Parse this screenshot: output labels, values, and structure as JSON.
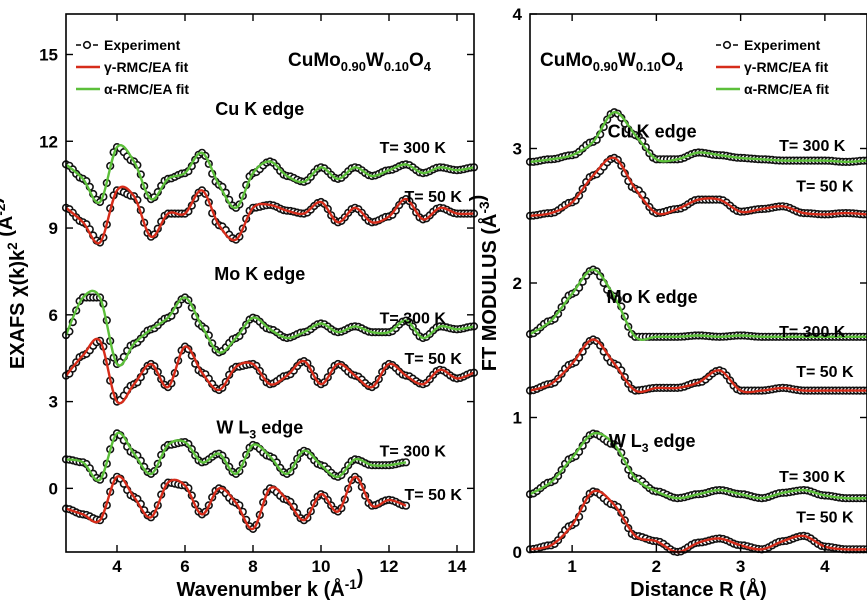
{
  "colors": {
    "experiment": "#111111",
    "gamma": "#d62c1a",
    "alpha": "#5cbf3a",
    "axis": "#000000"
  },
  "chart_data": [
    {
      "type": "line",
      "panel": "left",
      "compound": {
        "base": "CuMo",
        "sub1": "0.90",
        "mid": "W",
        "sub2": "0.10",
        "tail": "O",
        "sub3": "4"
      },
      "xlabel": {
        "main": "Wavenumber k (Å",
        "sup": "-1",
        "end": ")"
      },
      "ylabel": {
        "main": "EXAFS χ(k)k",
        "sup1": "2",
        "mid": " (Å",
        "sup2": "-2",
        "end": ")"
      },
      "xlim": [
        2.5,
        14.5
      ],
      "ylim": [
        -2.2,
        16.4
      ],
      "xticks": [
        "4",
        "6",
        "8",
        "10",
        "12",
        "14"
      ],
      "yticks": [
        "0",
        "3",
        "6",
        "9",
        "12",
        "15"
      ],
      "legend": {
        "position": "top-left",
        "entries": [
          "Experiment",
          "γ-RMC/EA fit",
          "α-RMC/EA fit"
        ]
      },
      "edge_labels": [
        {
          "text": "Cu K edge",
          "x": 8.2,
          "y": 12.9
        },
        {
          "text": "Mo K edge",
          "x": 8.2,
          "y": 7.2
        },
        {
          "text": "W L",
          "sub": "3",
          "end": " edge",
          "x": 8.2,
          "y": 1.9
        }
      ],
      "temp_labels": [
        {
          "text": "T= 300 K",
          "x": 12.7,
          "y": 11.6
        },
        {
          "text": "T= 50 K",
          "x": 13.3,
          "y": 9.9
        },
        {
          "text": "T= 300 K",
          "x": 12.7,
          "y": 5.7
        },
        {
          "text": "T= 50 K",
          "x": 13.3,
          "y": 4.3
        },
        {
          "text": "T= 300 K",
          "x": 12.7,
          "y": 1.1
        },
        {
          "text": "T= 50 K",
          "x": 13.3,
          "y": -0.4
        }
      ],
      "series": [
        {
          "edge": "Cu K",
          "T": "300 K",
          "fit": "alpha",
          "x": [
            2.5,
            3.0,
            3.5,
            4.0,
            4.5,
            5.0,
            5.5,
            6.0,
            6.5,
            7.0,
            7.5,
            8.0,
            8.5,
            9.0,
            9.5,
            10.0,
            10.5,
            11.0,
            11.5,
            12.0,
            12.5,
            13.0,
            13.5,
            14.0,
            14.5
          ],
          "y": [
            11.2,
            10.7,
            9.9,
            11.8,
            11.3,
            10.0,
            10.7,
            10.9,
            11.6,
            10.5,
            9.7,
            10.9,
            11.3,
            10.8,
            10.6,
            11.1,
            10.7,
            11.1,
            10.8,
            11.0,
            11.2,
            10.9,
            11.1,
            11.0,
            11.1
          ]
        },
        {
          "edge": "Cu K",
          "T": "50 K",
          "fit": "gamma",
          "x": [
            2.5,
            3.0,
            3.5,
            4.0,
            4.5,
            5.0,
            5.5,
            6.0,
            6.5,
            7.0,
            7.5,
            8.0,
            8.5,
            9.0,
            9.5,
            10.0,
            10.5,
            11.0,
            11.5,
            12.0,
            12.5,
            13.0,
            13.5,
            14.0,
            14.5
          ],
          "y": [
            9.7,
            9.2,
            8.5,
            10.3,
            10.1,
            8.7,
            9.5,
            9.5,
            10.3,
            9.1,
            8.6,
            9.7,
            9.8,
            9.6,
            9.5,
            9.9,
            9.2,
            9.7,
            9.2,
            9.4,
            10.0,
            9.3,
            9.7,
            9.5,
            9.5
          ]
        },
        {
          "edge": "Mo K",
          "T": "300 K",
          "fit": "alpha",
          "x": [
            2.5,
            3.0,
            3.5,
            4.0,
            4.5,
            5.0,
            5.5,
            6.0,
            6.5,
            7.0,
            7.5,
            8.0,
            8.5,
            9.0,
            9.5,
            10.0,
            10.5,
            11.0,
            11.5,
            12.0,
            12.5,
            13.0,
            13.5,
            14.0,
            14.5
          ],
          "y": [
            5.3,
            6.6,
            6.6,
            4.3,
            5.0,
            5.5,
            5.9,
            6.6,
            5.6,
            4.7,
            5.2,
            5.9,
            5.5,
            5.2,
            5.4,
            5.7,
            5.4,
            5.6,
            5.4,
            5.4,
            5.8,
            5.2,
            5.6,
            5.5,
            5.6
          ]
        },
        {
          "edge": "Mo K",
          "T": "50 K",
          "fit": "gamma",
          "x": [
            2.5,
            3.0,
            3.5,
            4.0,
            4.5,
            5.0,
            5.5,
            6.0,
            6.5,
            7.0,
            7.5,
            8.0,
            8.5,
            9.0,
            9.5,
            10.0,
            10.5,
            11.0,
            11.5,
            12.0,
            12.5,
            13.0,
            13.5,
            14.0,
            14.5
          ],
          "y": [
            3.9,
            4.6,
            5.1,
            3.0,
            3.6,
            4.3,
            3.5,
            4.9,
            4.0,
            3.4,
            4.2,
            4.3,
            3.6,
            3.9,
            4.4,
            3.6,
            4.3,
            3.9,
            3.5,
            4.3,
            3.9,
            3.6,
            4.1,
            3.8,
            4.0
          ]
        },
        {
          "edge": "W L3",
          "T": "300 K",
          "fit": "alpha",
          "x": [
            2.5,
            3.0,
            3.5,
            4.0,
            4.5,
            5.0,
            5.5,
            6.0,
            6.5,
            7.0,
            7.5,
            8.0,
            8.5,
            9.0,
            9.5,
            10.0,
            10.5,
            11.0,
            11.5,
            12.0,
            12.5
          ],
          "y": [
            1.0,
            0.9,
            0.3,
            1.9,
            1.2,
            0.5,
            1.5,
            1.6,
            0.9,
            1.2,
            0.5,
            1.5,
            1.1,
            0.5,
            1.3,
            0.8,
            0.4,
            1.0,
            0.8,
            0.8,
            0.9
          ]
        },
        {
          "edge": "W L3",
          "T": "50 K",
          "fit": "gamma",
          "x": [
            2.5,
            3.0,
            3.5,
            4.0,
            4.5,
            5.0,
            5.5,
            6.0,
            6.5,
            7.0,
            7.5,
            8.0,
            8.5,
            9.0,
            9.5,
            10.0,
            10.5,
            11.0,
            11.5,
            12.0,
            12.5
          ],
          "y": [
            -0.7,
            -0.9,
            -1.1,
            0.4,
            -0.3,
            -1.0,
            0.2,
            0.1,
            -0.9,
            0.0,
            -0.5,
            -1.4,
            0.0,
            -0.4,
            -1.1,
            -0.2,
            -0.8,
            0.4,
            -0.6,
            -0.4,
            -0.6
          ]
        }
      ]
    },
    {
      "type": "line",
      "panel": "right",
      "compound": {
        "base": "CuMo",
        "sub1": "0.90",
        "mid": "W",
        "sub2": "0.10",
        "tail": "O",
        "sub3": "4"
      },
      "xlabel": {
        "main": "Distance R (Å)"
      },
      "ylabel": {
        "main": "FT MODULUS (Å",
        "sup": "-3",
        "end": ")"
      },
      "xlim": [
        0.5,
        4.5
      ],
      "ylim": [
        0,
        4
      ],
      "xticks": [
        "1",
        "2",
        "3",
        "4"
      ],
      "yticks": [
        "0",
        "1",
        "2",
        "3",
        "4"
      ],
      "legend": {
        "position": "top-right",
        "entries": [
          "Experiment",
          "γ-RMC/EA fit",
          "α-RMC/EA fit"
        ]
      },
      "edge_labels": [
        {
          "text": "Cu K edge",
          "x": 1.95,
          "y": 3.08
        },
        {
          "text": "Mo K edge",
          "x": 1.95,
          "y": 1.85
        },
        {
          "text": "W L",
          "sub": "3",
          "end": " edge",
          "x": 1.95,
          "y": 0.78
        }
      ],
      "temp_labels": [
        {
          "text": "T= 300 K",
          "x": 3.85,
          "y": 2.98
        },
        {
          "text": "T= 50 K",
          "x": 4.0,
          "y": 2.68
        },
        {
          "text": "T= 300 K",
          "x": 3.85,
          "y": 1.6
        },
        {
          "text": "T= 50 K",
          "x": 4.0,
          "y": 1.3
        },
        {
          "text": "T= 300 K",
          "x": 3.85,
          "y": 0.52
        },
        {
          "text": "T= 50 K",
          "x": 4.0,
          "y": 0.22
        }
      ],
      "series": [
        {
          "edge": "Cu K",
          "T": "300 K",
          "fit": "alpha",
          "x": [
            0.5,
            0.75,
            1.0,
            1.25,
            1.5,
            1.75,
            2.0,
            2.25,
            2.5,
            2.75,
            3.0,
            3.25,
            3.5,
            3.75,
            4.0,
            4.25,
            4.5
          ],
          "y": [
            2.9,
            2.92,
            2.95,
            3.05,
            3.27,
            3.1,
            2.92,
            2.92,
            2.97,
            2.95,
            2.93,
            2.92,
            2.91,
            2.91,
            2.91,
            2.9,
            2.91
          ]
        },
        {
          "edge": "Cu K",
          "T": "50 K",
          "fit": "gamma",
          "x": [
            0.5,
            0.75,
            1.0,
            1.25,
            1.5,
            1.75,
            2.0,
            2.25,
            2.5,
            2.75,
            3.0,
            3.25,
            3.5,
            3.75,
            4.0,
            4.25,
            4.5
          ],
          "y": [
            2.5,
            2.52,
            2.6,
            2.8,
            2.93,
            2.7,
            2.52,
            2.55,
            2.62,
            2.62,
            2.53,
            2.55,
            2.57,
            2.52,
            2.51,
            2.52,
            2.51
          ]
        },
        {
          "edge": "Mo K",
          "T": "300 K",
          "fit": "alpha",
          "x": [
            0.5,
            0.75,
            1.0,
            1.25,
            1.5,
            1.75,
            2.0,
            2.25,
            2.5,
            2.75,
            3.0,
            3.25,
            3.5,
            3.75,
            4.0,
            4.25,
            4.5
          ],
          "y": [
            1.62,
            1.72,
            1.92,
            2.1,
            1.9,
            1.6,
            1.6,
            1.6,
            1.61,
            1.6,
            1.61,
            1.6,
            1.6,
            1.6,
            1.6,
            1.6,
            1.6
          ]
        },
        {
          "edge": "Mo K",
          "T": "50 K",
          "fit": "gamma",
          "x": [
            0.5,
            0.75,
            1.0,
            1.25,
            1.5,
            1.75,
            2.0,
            2.25,
            2.5,
            2.75,
            3.0,
            3.25,
            3.5,
            3.75,
            4.0,
            4.25,
            4.5
          ],
          "y": [
            1.2,
            1.25,
            1.4,
            1.58,
            1.4,
            1.2,
            1.22,
            1.22,
            1.26,
            1.35,
            1.2,
            1.2,
            1.22,
            1.2,
            1.2,
            1.2,
            1.2
          ]
        },
        {
          "edge": "W L3",
          "T": "300 K",
          "fit": "alpha",
          "x": [
            0.5,
            0.75,
            1.0,
            1.25,
            1.5,
            1.75,
            2.0,
            2.25,
            2.5,
            2.75,
            3.0,
            3.25,
            3.5,
            3.75,
            4.0,
            4.25,
            4.5
          ],
          "y": [
            0.43,
            0.52,
            0.7,
            0.88,
            0.8,
            0.55,
            0.45,
            0.4,
            0.43,
            0.46,
            0.43,
            0.4,
            0.44,
            0.46,
            0.42,
            0.4,
            0.4
          ]
        },
        {
          "edge": "W L3",
          "T": "50 K",
          "fit": "gamma",
          "x": [
            0.5,
            0.75,
            1.0,
            1.25,
            1.5,
            1.75,
            2.0,
            2.25,
            2.5,
            2.75,
            3.0,
            3.25,
            3.5,
            3.75,
            4.0,
            4.25,
            4.5
          ],
          "y": [
            0.02,
            0.05,
            0.2,
            0.45,
            0.35,
            0.12,
            0.08,
            0.0,
            0.07,
            0.1,
            0.05,
            0.02,
            0.08,
            0.12,
            0.04,
            0.02,
            0.02
          ]
        }
      ]
    }
  ]
}
